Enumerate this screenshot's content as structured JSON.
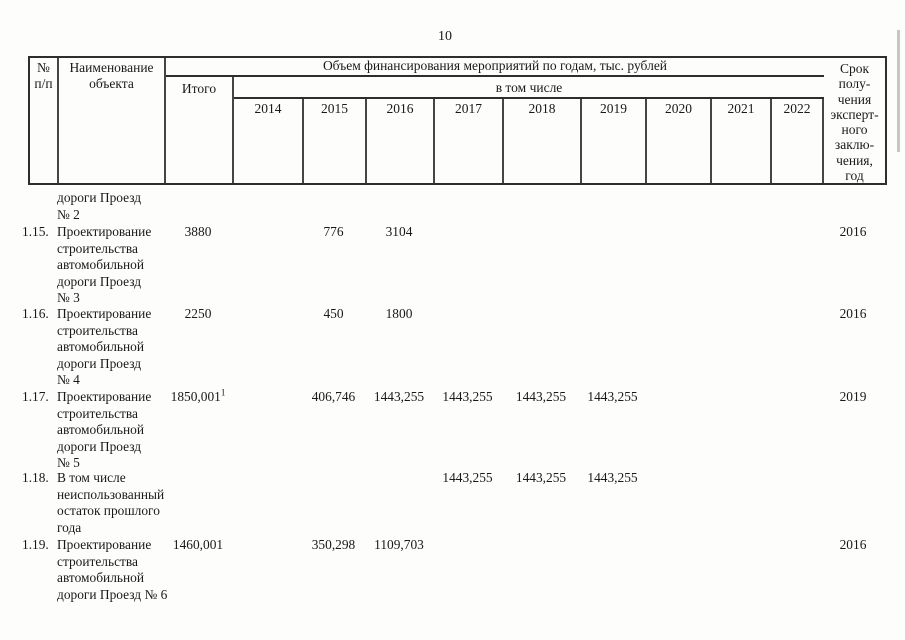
{
  "page": {
    "number": "10"
  },
  "table": {
    "header": {
      "col_num": "№\nп/п",
      "col_name": "Наименование\nобъекта",
      "col_volume": "Объем финансирования мероприятий по годам, тыс. рублей",
      "col_itogo": "Итого",
      "col_including": "в том числе",
      "years": [
        "2014",
        "2015",
        "2016",
        "2017",
        "2018",
        "2019",
        "2020",
        "2021",
        "2022"
      ],
      "col_term": "Срок\nполу-\nчения\nэксперт-\nного\nзаклю-\nчения,\nгод"
    },
    "rows": [
      {
        "num": "",
        "name": "дороги Проезд\n№ 2"
      },
      {
        "num": "1.15.",
        "name": "Проектирование\nстроительства\nавтомобильной\nдороги Проезд\n№ 3",
        "itogo": "3880",
        "y2015": "776",
        "y2016": "3104",
        "term": "2016"
      },
      {
        "num": "1.16.",
        "name": "Проектирование\nстроительства\nавтомобильной\nдороги Проезд\n№ 4",
        "itogo": "2250",
        "y2015": "450",
        "y2016": "1800",
        "term": "2016"
      },
      {
        "num": "1.17.",
        "name": "Проектирование\nстроительства\nавтомобильной\nдороги Проезд\n№ 5",
        "itogo": "1850,001",
        "itogo_sup": "1",
        "y2015": "406,746",
        "y2016": "1443,255",
        "y2017": "1443,255",
        "y2018": "1443,255",
        "y2019": "1443,255",
        "term": "2019"
      },
      {
        "num": "1.18.",
        "name": "В том числе\nнеиспользованный\nостаток прошлого\nгода",
        "y2017": "1443,255",
        "y2018": "1443,255",
        "y2019": "1443,255"
      },
      {
        "num": "1.19.",
        "name": "Проектирование\nстроительства\nавтомобильной\nдороги Проезд № 6",
        "itogo": "1460,001",
        "y2015": "350,298",
        "y2016": "1109,703",
        "term": "2016"
      }
    ]
  }
}
